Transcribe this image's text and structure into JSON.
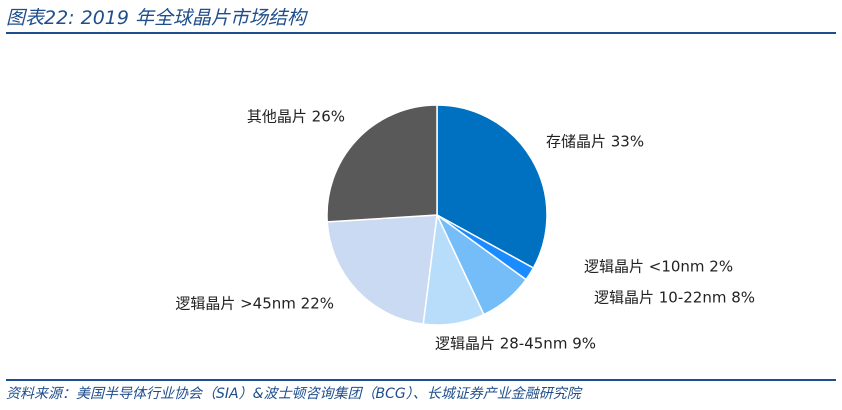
{
  "header": {
    "title": "图表22: 2019 年全球晶片市场结构"
  },
  "footer": {
    "source": "资料来源：美国半导体行业协会（SIA）&波士顿咨询集团（BCG）、长城证券产业金融研究院"
  },
  "chart_data": {
    "type": "pie",
    "start_angle_deg": 0,
    "direction": "clockwise",
    "legend": "none",
    "slices": [
      {
        "label": "存储晶片 33%",
        "value": 33,
        "color": "#0070c0"
      },
      {
        "label": "逻辑晶片 <10nm 2%",
        "value": 2,
        "color": "#1a8cff"
      },
      {
        "label": "逻辑晶片 10-22nm 8%",
        "value": 8,
        "color": "#74bdf9"
      },
      {
        "label": "逻辑晶片 28-45nm 9%",
        "value": 9,
        "color": "#b7ddfb"
      },
      {
        "label": "逻辑晶片 >45nm 22%",
        "value": 22,
        "color": "#c9daf2"
      },
      {
        "label": "其他晶片 26%",
        "value": 26,
        "color": "#595959"
      }
    ]
  }
}
